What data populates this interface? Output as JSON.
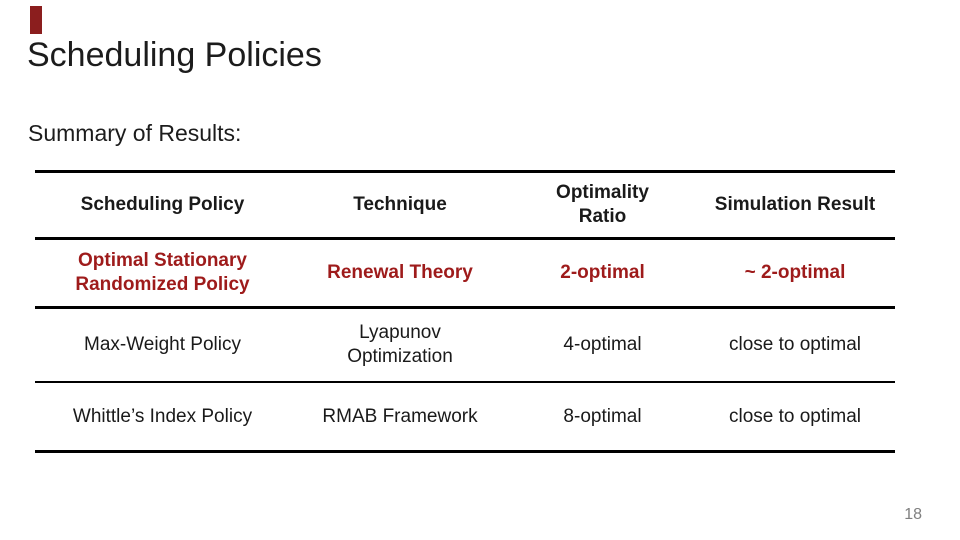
{
  "slide": {
    "title": "Scheduling Policies",
    "subtitle": "Summary of Results:",
    "page_number": "18"
  },
  "theme": {
    "accent_red": "#9e1b1b",
    "text_color": "#1a1a1a",
    "border_color": "#000000",
    "page_number_color": "#7f7f7f"
  },
  "table": {
    "headers": [
      "Scheduling Policy",
      "Technique",
      "Optimality\nRatio",
      "Simulation Result"
    ],
    "rows": [
      {
        "policy": "Optimal Stationary\nRandomized Policy",
        "technique": "Renewal Theory",
        "optimality_ratio": "2-optimal",
        "simulation_result": "~ 2-optimal",
        "emphasis": "red-bold"
      },
      {
        "policy": "Max-Weight Policy",
        "technique": "Lyapunov\nOptimization",
        "optimality_ratio": "4-optimal",
        "simulation_result": "close to optimal",
        "emphasis": "none"
      },
      {
        "policy": "Whittle’s Index Policy",
        "technique": "RMAB Framework",
        "optimality_ratio": "8-optimal",
        "simulation_result": "close to optimal",
        "emphasis": "none"
      }
    ]
  }
}
